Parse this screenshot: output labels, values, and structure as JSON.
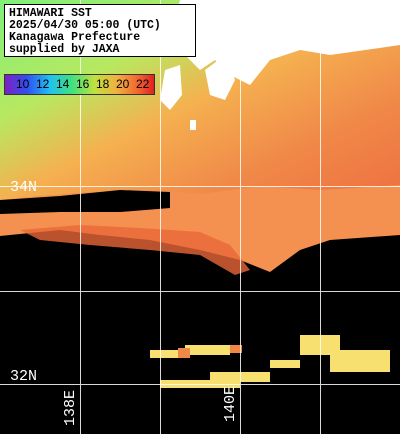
{
  "header": {
    "lines": [
      "HIMAWARI SST",
      "2025/04/30 05:00 (UTC)",
      "Kanagawa Prefecture",
      "supplied by JAXA"
    ]
  },
  "colorbar": {
    "ticks": [
      "10",
      "12",
      "14",
      "16",
      "18",
      "20",
      "22"
    ]
  },
  "grid": {
    "lat_labels": [
      "34N",
      "32N"
    ],
    "lon_labels": [
      "138E",
      "140E"
    ]
  }
}
